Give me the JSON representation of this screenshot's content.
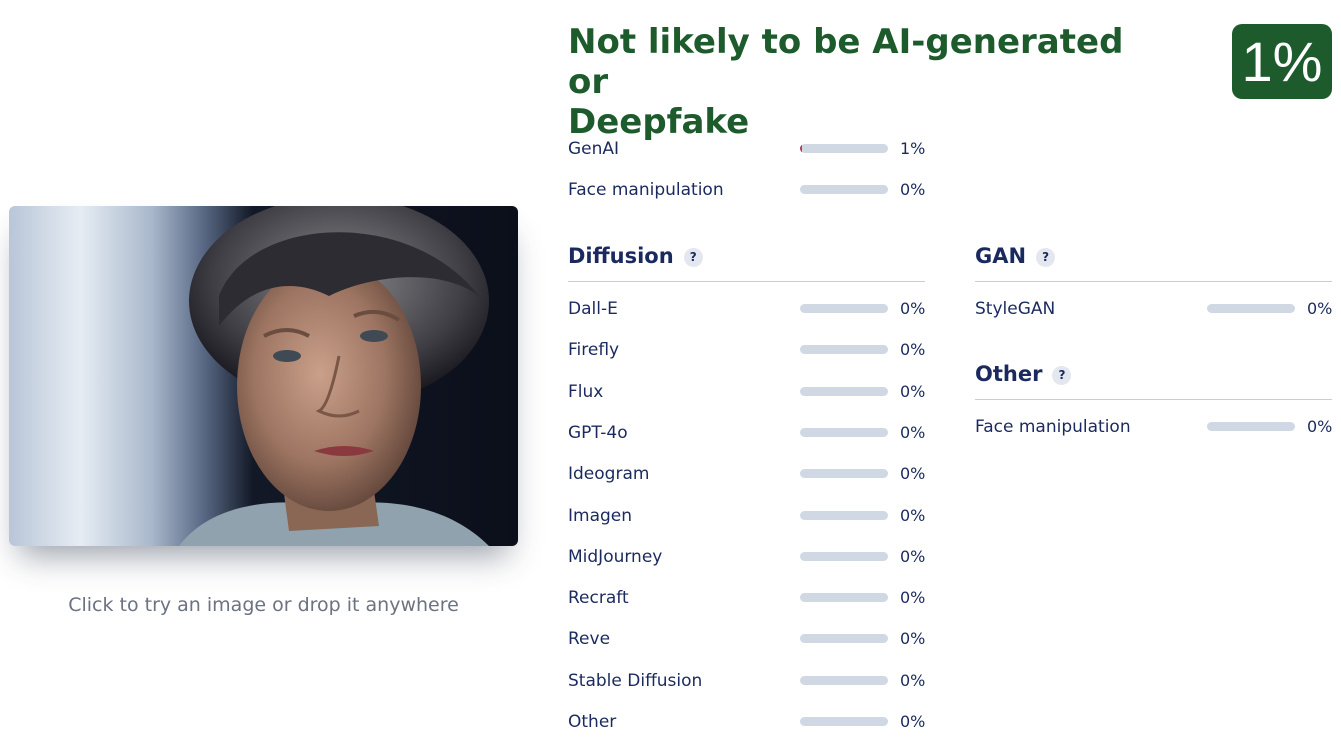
{
  "upload": {
    "hint": "Click to try an image or drop it anywhere"
  },
  "verdict": {
    "line1": "Not likely to be AI-generated or",
    "line2": "Deepfake",
    "score": "1%",
    "color": "#1d5b2c"
  },
  "summary": [
    {
      "label": "GenAI",
      "value": "1%",
      "fraction": 0.01
    },
    {
      "label": "Face manipulation",
      "value": "0%",
      "fraction": 0
    }
  ],
  "diffusion": {
    "title": "Diffusion",
    "help": "?",
    "items": [
      {
        "label": "Dall-E",
        "value": "0%",
        "fraction": 0
      },
      {
        "label": "Firefly",
        "value": "0%",
        "fraction": 0
      },
      {
        "label": "Flux",
        "value": "0%",
        "fraction": 0
      },
      {
        "label": "GPT-4o",
        "value": "0%",
        "fraction": 0
      },
      {
        "label": "Ideogram",
        "value": "0%",
        "fraction": 0
      },
      {
        "label": "Imagen",
        "value": "0%",
        "fraction": 0
      },
      {
        "label": "MidJourney",
        "value": "0%",
        "fraction": 0
      },
      {
        "label": "Recraft",
        "value": "0%",
        "fraction": 0
      },
      {
        "label": "Reve",
        "value": "0%",
        "fraction": 0
      },
      {
        "label": "Stable Diffusion",
        "value": "0%",
        "fraction": 0
      },
      {
        "label": "Other",
        "value": "0%",
        "fraction": 0
      }
    ]
  },
  "gan": {
    "title": "GAN",
    "help": "?",
    "items": [
      {
        "label": "StyleGAN",
        "value": "0%",
        "fraction": 0
      }
    ]
  },
  "other": {
    "title": "Other",
    "help": "?",
    "items": [
      {
        "label": "Face manipulation",
        "value": "0%",
        "fraction": 0
      }
    ]
  }
}
